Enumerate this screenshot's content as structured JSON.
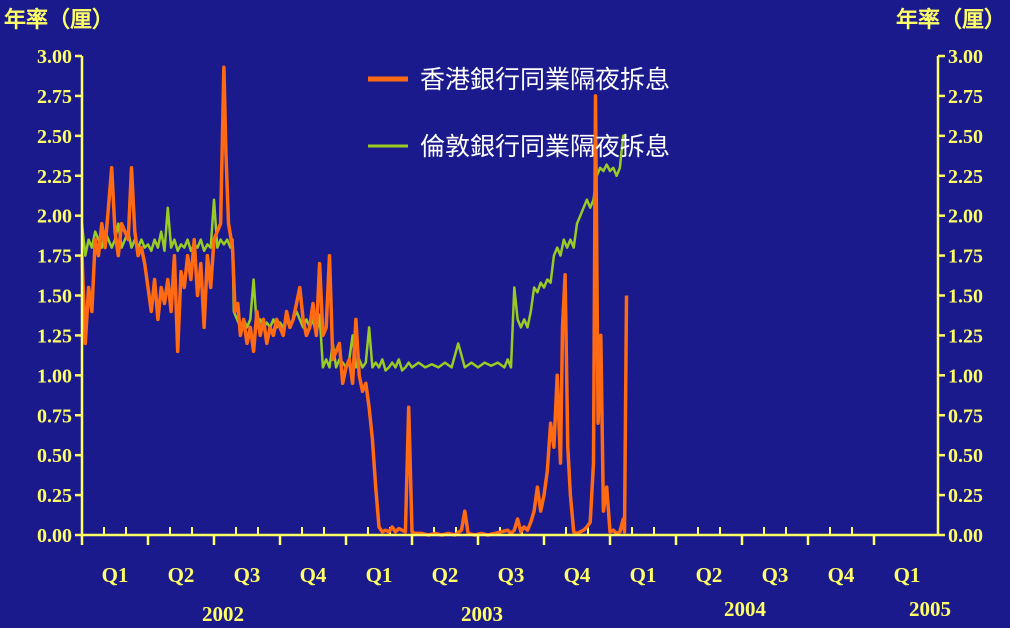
{
  "chart_data": {
    "type": "line",
    "left_axis_unit": "年率（厘）",
    "right_axis_unit": "年率（厘）",
    "ylim": [
      0,
      3
    ],
    "y_ticks": [
      "0.00",
      "0.25",
      "0.50",
      "0.75",
      "1.00",
      "1.25",
      "1.50",
      "1.75",
      "2.00",
      "2.25",
      "2.50",
      "2.75",
      "3.00"
    ],
    "quarters": [
      "Q1",
      "Q2",
      "Q3",
      "Q4",
      "Q1",
      "Q2",
      "Q3",
      "Q4",
      "Q1",
      "Q2",
      "Q3",
      "Q4",
      "Q1"
    ],
    "years": [
      "2002",
      "2003",
      "2004",
      "2005"
    ],
    "series": [
      {
        "name": "香港銀行同業隔夜拆息",
        "color": "#ff6a13",
        "points": [
          [
            0.0,
            1.75
          ],
          [
            0.05,
            1.2
          ],
          [
            0.1,
            1.55
          ],
          [
            0.15,
            1.4
          ],
          [
            0.2,
            1.85
          ],
          [
            0.25,
            1.75
          ],
          [
            0.3,
            1.95
          ],
          [
            0.35,
            1.8
          ],
          [
            0.45,
            2.3
          ],
          [
            0.5,
            1.9
          ],
          [
            0.55,
            1.75
          ],
          [
            0.6,
            1.95
          ],
          [
            0.7,
            1.85
          ],
          [
            0.75,
            2.3
          ],
          [
            0.8,
            1.9
          ],
          [
            0.85,
            1.75
          ],
          [
            0.9,
            1.8
          ],
          [
            0.95,
            1.7
          ],
          [
            1.0,
            1.55
          ],
          [
            1.05,
            1.4
          ],
          [
            1.1,
            1.6
          ],
          [
            1.15,
            1.35
          ],
          [
            1.2,
            1.55
          ],
          [
            1.25,
            1.45
          ],
          [
            1.3,
            1.6
          ],
          [
            1.35,
            1.4
          ],
          [
            1.4,
            1.75
          ],
          [
            1.45,
            1.15
          ],
          [
            1.5,
            1.65
          ],
          [
            1.55,
            1.55
          ],
          [
            1.6,
            1.75
          ],
          [
            1.65,
            1.6
          ],
          [
            1.7,
            1.85
          ],
          [
            1.75,
            1.5
          ],
          [
            1.8,
            1.7
          ],
          [
            1.85,
            1.3
          ],
          [
            1.9,
            1.75
          ],
          [
            1.95,
            1.55
          ],
          [
            2.0,
            1.85
          ],
          [
            2.05,
            1.9
          ],
          [
            2.1,
            1.95
          ],
          [
            2.15,
            2.93
          ],
          [
            2.18,
            2.4
          ],
          [
            2.22,
            1.95
          ],
          [
            2.28,
            1.8
          ],
          [
            2.32,
            1.4
          ],
          [
            2.36,
            1.45
          ],
          [
            2.4,
            1.25
          ],
          [
            2.45,
            1.35
          ],
          [
            2.5,
            1.2
          ],
          [
            2.55,
            1.3
          ],
          [
            2.6,
            1.15
          ],
          [
            2.65,
            1.4
          ],
          [
            2.7,
            1.25
          ],
          [
            2.75,
            1.35
          ],
          [
            2.8,
            1.2
          ],
          [
            2.85,
            1.3
          ],
          [
            2.9,
            1.25
          ],
          [
            2.95,
            1.35
          ],
          [
            3.0,
            1.3
          ],
          [
            3.05,
            1.25
          ],
          [
            3.1,
            1.4
          ],
          [
            3.15,
            1.3
          ],
          [
            3.2,
            1.35
          ],
          [
            3.25,
            1.45
          ],
          [
            3.3,
            1.55
          ],
          [
            3.35,
            1.35
          ],
          [
            3.4,
            1.25
          ],
          [
            3.45,
            1.3
          ],
          [
            3.5,
            1.45
          ],
          [
            3.55,
            1.25
          ],
          [
            3.6,
            1.7
          ],
          [
            3.65,
            1.25
          ],
          [
            3.7,
            1.3
          ],
          [
            3.75,
            1.75
          ],
          [
            3.8,
            1.1
          ],
          [
            3.85,
            1.15
          ],
          [
            3.9,
            1.2
          ],
          [
            3.95,
            0.95
          ],
          [
            4.0,
            1.05
          ],
          [
            4.05,
            1.1
          ],
          [
            4.1,
            0.95
          ],
          [
            4.15,
            1.35
          ],
          [
            4.2,
            1.0
          ],
          [
            4.25,
            0.9
          ],
          [
            4.3,
            0.95
          ],
          [
            4.35,
            0.8
          ],
          [
            4.4,
            0.6
          ],
          [
            4.45,
            0.3
          ],
          [
            4.5,
            0.05
          ],
          [
            4.55,
            0.02
          ],
          [
            4.6,
            0.03
          ],
          [
            4.65,
            0.02
          ],
          [
            4.7,
            0.05
          ],
          [
            4.75,
            0.02
          ],
          [
            4.8,
            0.04
          ],
          [
            4.85,
            0.03
          ],
          [
            4.9,
            0.02
          ],
          [
            4.95,
            0.8
          ],
          [
            5.0,
            0.02
          ],
          [
            5.05,
            0.01
          ],
          [
            5.15,
            0.01
          ],
          [
            5.25,
            0.0
          ],
          [
            5.35,
            0.01
          ],
          [
            5.45,
            0.0
          ],
          [
            5.55,
            0.01
          ],
          [
            5.65,
            0.0
          ],
          [
            5.75,
            0.03
          ],
          [
            5.8,
            0.15
          ],
          [
            5.85,
            0.01
          ],
          [
            5.95,
            0.0
          ],
          [
            6.05,
            0.01
          ],
          [
            6.15,
            0.0
          ],
          [
            6.25,
            0.01
          ],
          [
            6.35,
            0.02
          ],
          [
            6.45,
            0.03
          ],
          [
            6.5,
            0.01
          ],
          [
            6.55,
            0.03
          ],
          [
            6.6,
            0.1
          ],
          [
            6.65,
            0.02
          ],
          [
            6.7,
            0.05
          ],
          [
            6.75,
            0.03
          ],
          [
            6.8,
            0.08
          ],
          [
            6.85,
            0.15
          ],
          [
            6.9,
            0.3
          ],
          [
            6.95,
            0.15
          ],
          [
            7.0,
            0.25
          ],
          [
            7.05,
            0.4
          ],
          [
            7.1,
            0.7
          ],
          [
            7.15,
            0.55
          ],
          [
            7.2,
            1.0
          ],
          [
            7.25,
            0.45
          ],
          [
            7.28,
            1.3
          ],
          [
            7.32,
            1.63
          ],
          [
            7.36,
            0.55
          ],
          [
            7.4,
            0.25
          ],
          [
            7.45,
            0.02
          ],
          [
            7.5,
            0.01
          ],
          [
            7.55,
            0.02
          ],
          [
            7.6,
            0.03
          ],
          [
            7.65,
            0.05
          ],
          [
            7.7,
            0.08
          ],
          [
            7.75,
            0.45
          ],
          [
            7.78,
            2.75
          ],
          [
            7.82,
            0.7
          ],
          [
            7.86,
            1.25
          ],
          [
            7.9,
            0.15
          ],
          [
            7.95,
            0.3
          ],
          [
            8.0,
            0.02
          ],
          [
            8.05,
            0.03
          ],
          [
            8.1,
            0.01
          ],
          [
            8.15,
            0.02
          ],
          [
            8.2,
            0.1
          ],
          [
            8.22,
            0.02
          ],
          [
            8.25,
            1.5
          ]
        ]
      },
      {
        "name": "倫敦銀行同業隔夜拆息",
        "color": "#99cc22",
        "points": [
          [
            0.0,
            1.95
          ],
          [
            0.05,
            1.75
          ],
          [
            0.1,
            1.85
          ],
          [
            0.15,
            1.8
          ],
          [
            0.2,
            1.9
          ],
          [
            0.25,
            1.85
          ],
          [
            0.3,
            1.8
          ],
          [
            0.35,
            1.9
          ],
          [
            0.4,
            1.85
          ],
          [
            0.45,
            1.8
          ],
          [
            0.5,
            1.85
          ],
          [
            0.55,
            1.95
          ],
          [
            0.6,
            1.8
          ],
          [
            0.65,
            1.85
          ],
          [
            0.7,
            1.9
          ],
          [
            0.75,
            1.8
          ],
          [
            0.8,
            1.85
          ],
          [
            0.85,
            1.8
          ],
          [
            0.9,
            1.85
          ],
          [
            0.95,
            1.8
          ],
          [
            1.0,
            1.82
          ],
          [
            1.05,
            1.78
          ],
          [
            1.1,
            1.85
          ],
          [
            1.15,
            1.8
          ],
          [
            1.2,
            1.9
          ],
          [
            1.25,
            1.78
          ],
          [
            1.3,
            2.05
          ],
          [
            1.35,
            1.8
          ],
          [
            1.4,
            1.85
          ],
          [
            1.45,
            1.78
          ],
          [
            1.5,
            1.82
          ],
          [
            1.55,
            1.8
          ],
          [
            1.6,
            1.85
          ],
          [
            1.65,
            1.78
          ],
          [
            1.7,
            1.82
          ],
          [
            1.75,
            1.8
          ],
          [
            1.8,
            1.85
          ],
          [
            1.85,
            1.78
          ],
          [
            1.9,
            1.82
          ],
          [
            1.95,
            1.8
          ],
          [
            2.0,
            2.1
          ],
          [
            2.05,
            1.8
          ],
          [
            2.1,
            1.85
          ],
          [
            2.15,
            1.82
          ],
          [
            2.2,
            1.85
          ],
          [
            2.25,
            1.8
          ],
          [
            2.28,
            1.85
          ],
          [
            2.3,
            1.4
          ],
          [
            2.35,
            1.35
          ],
          [
            2.4,
            1.3
          ],
          [
            2.45,
            1.35
          ],
          [
            2.5,
            1.3
          ],
          [
            2.55,
            1.35
          ],
          [
            2.6,
            1.6
          ],
          [
            2.65,
            1.3
          ],
          [
            2.7,
            1.35
          ],
          [
            2.75,
            1.3
          ],
          [
            2.8,
            1.33
          ],
          [
            2.85,
            1.3
          ],
          [
            2.9,
            1.35
          ],
          [
            2.95,
            1.3
          ],
          [
            3.0,
            1.33
          ],
          [
            3.05,
            1.3
          ],
          [
            3.1,
            1.35
          ],
          [
            3.15,
            1.3
          ],
          [
            3.2,
            1.35
          ],
          [
            3.25,
            1.4
          ],
          [
            3.3,
            1.35
          ],
          [
            3.35,
            1.3
          ],
          [
            3.4,
            1.35
          ],
          [
            3.45,
            1.3
          ],
          [
            3.5,
            1.35
          ],
          [
            3.55,
            1.25
          ],
          [
            3.6,
            1.38
          ],
          [
            3.65,
            1.05
          ],
          [
            3.7,
            1.1
          ],
          [
            3.75,
            1.05
          ],
          [
            3.8,
            1.2
          ],
          [
            3.85,
            1.05
          ],
          [
            3.9,
            1.1
          ],
          [
            3.95,
            1.08
          ],
          [
            4.0,
            1.05
          ],
          [
            4.05,
            1.1
          ],
          [
            4.1,
            1.25
          ],
          [
            4.15,
            1.05
          ],
          [
            4.2,
            1.1
          ],
          [
            4.25,
            1.05
          ],
          [
            4.3,
            1.08
          ],
          [
            4.35,
            1.3
          ],
          [
            4.4,
            1.05
          ],
          [
            4.45,
            1.08
          ],
          [
            4.5,
            1.05
          ],
          [
            4.55,
            1.1
          ],
          [
            4.6,
            1.03
          ],
          [
            4.65,
            1.05
          ],
          [
            4.7,
            1.08
          ],
          [
            4.75,
            1.05
          ],
          [
            4.8,
            1.1
          ],
          [
            4.85,
            1.03
          ],
          [
            4.9,
            1.05
          ],
          [
            4.95,
            1.08
          ],
          [
            5.0,
            1.05
          ],
          [
            5.1,
            1.08
          ],
          [
            5.2,
            1.05
          ],
          [
            5.3,
            1.07
          ],
          [
            5.4,
            1.05
          ],
          [
            5.5,
            1.08
          ],
          [
            5.6,
            1.05
          ],
          [
            5.7,
            1.2
          ],
          [
            5.8,
            1.05
          ],
          [
            5.9,
            1.08
          ],
          [
            6.0,
            1.05
          ],
          [
            6.1,
            1.08
          ],
          [
            6.2,
            1.06
          ],
          [
            6.3,
            1.08
          ],
          [
            6.4,
            1.05
          ],
          [
            6.45,
            1.1
          ],
          [
            6.5,
            1.05
          ],
          [
            6.55,
            1.55
          ],
          [
            6.6,
            1.35
          ],
          [
            6.65,
            1.3
          ],
          [
            6.7,
            1.35
          ],
          [
            6.75,
            1.3
          ],
          [
            6.8,
            1.4
          ],
          [
            6.85,
            1.55
          ],
          [
            6.9,
            1.52
          ],
          [
            6.95,
            1.58
          ],
          [
            7.0,
            1.55
          ],
          [
            7.05,
            1.6
          ],
          [
            7.1,
            1.58
          ],
          [
            7.15,
            1.75
          ],
          [
            7.2,
            1.8
          ],
          [
            7.25,
            1.75
          ],
          [
            7.3,
            1.85
          ],
          [
            7.35,
            1.8
          ],
          [
            7.4,
            1.85
          ],
          [
            7.45,
            1.8
          ],
          [
            7.5,
            1.95
          ],
          [
            7.55,
            2.0
          ],
          [
            7.6,
            2.05
          ],
          [
            7.65,
            2.1
          ],
          [
            7.7,
            2.05
          ],
          [
            7.75,
            2.1
          ],
          [
            7.8,
            2.25
          ],
          [
            7.85,
            2.3
          ],
          [
            7.9,
            2.28
          ],
          [
            7.95,
            2.32
          ],
          [
            8.0,
            2.28
          ],
          [
            8.05,
            2.3
          ],
          [
            8.1,
            2.25
          ],
          [
            8.15,
            2.3
          ],
          [
            8.2,
            2.5
          ],
          [
            8.25,
            2.5
          ]
        ]
      }
    ]
  }
}
